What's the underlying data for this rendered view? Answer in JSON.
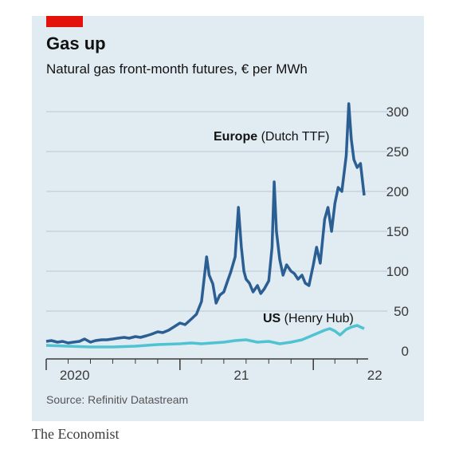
{
  "header": {
    "title": "Gas up",
    "subtitle": "Natural gas front-month futures, € per MWh"
  },
  "footer": {
    "source": "Source: Refinitiv Datastream",
    "brand": "The Economist"
  },
  "colors": {
    "background": "#e1ebf2",
    "accent": "#e3120b",
    "europe": "#2b5f94",
    "us": "#4fc3d1",
    "grid": "#b8c6d2",
    "axis": "#3a3a3a"
  },
  "chart_data": {
    "type": "line",
    "title": "Gas up",
    "subtitle": "Natural gas front-month futures, € per MWh",
    "xlabel": "",
    "ylabel": "",
    "ylim": [
      0,
      300
    ],
    "yticks": [
      0,
      50,
      100,
      150,
      200,
      250,
      300
    ],
    "xlim": [
      "2020-01-01",
      "2022-05-31"
    ],
    "xtick_labels": [
      {
        "date": "2020-04-01",
        "label": "2020"
      },
      {
        "date": "2021-07-01",
        "label": "21"
      },
      {
        "date": "2022-07-01",
        "label": "22"
      }
    ],
    "grid": true,
    "series": [
      {
        "name": "Europe (Dutch TTF)",
        "color": "#2b5f94",
        "points": [
          [
            "2020-01-01",
            12
          ],
          [
            "2020-01-15",
            13
          ],
          [
            "2020-02-01",
            11
          ],
          [
            "2020-02-15",
            12
          ],
          [
            "2020-03-01",
            10
          ],
          [
            "2020-03-15",
            11
          ],
          [
            "2020-04-01",
            12
          ],
          [
            "2020-04-15",
            15
          ],
          [
            "2020-05-01",
            11
          ],
          [
            "2020-05-15",
            13
          ],
          [
            "2020-06-01",
            14
          ],
          [
            "2020-06-15",
            14
          ],
          [
            "2020-07-01",
            15
          ],
          [
            "2020-07-15",
            16
          ],
          [
            "2020-08-01",
            17
          ],
          [
            "2020-08-15",
            16
          ],
          [
            "2020-09-01",
            18
          ],
          [
            "2020-09-15",
            17
          ],
          [
            "2020-10-01",
            19
          ],
          [
            "2020-10-15",
            21
          ],
          [
            "2020-11-01",
            24
          ],
          [
            "2020-11-15",
            23
          ],
          [
            "2020-12-01",
            26
          ],
          [
            "2020-12-15",
            30
          ],
          [
            "2021-01-01",
            35
          ],
          [
            "2021-01-15",
            33
          ],
          [
            "2021-02-01",
            40
          ],
          [
            "2021-02-15",
            46
          ],
          [
            "2021-03-01",
            62
          ],
          [
            "2021-03-15",
            118
          ],
          [
            "2021-03-22",
            95
          ],
          [
            "2021-04-01",
            84
          ],
          [
            "2021-04-10",
            60
          ],
          [
            "2021-04-20",
            70
          ],
          [
            "2021-05-01",
            74
          ],
          [
            "2021-05-10",
            86
          ],
          [
            "2021-05-20",
            99
          ],
          [
            "2021-06-01",
            118
          ],
          [
            "2021-06-10",
            180
          ],
          [
            "2021-06-18",
            130
          ],
          [
            "2021-06-25",
            100
          ],
          [
            "2021-07-01",
            90
          ],
          [
            "2021-07-10",
            85
          ],
          [
            "2021-07-20",
            74
          ],
          [
            "2021-08-01",
            82
          ],
          [
            "2021-08-10",
            72
          ],
          [
            "2021-08-20",
            78
          ],
          [
            "2021-09-01",
            88
          ],
          [
            "2021-09-10",
            130
          ],
          [
            "2021-09-16",
            212
          ],
          [
            "2021-09-22",
            150
          ],
          [
            "2021-10-01",
            115
          ],
          [
            "2021-10-10",
            95
          ],
          [
            "2021-10-20",
            108
          ],
          [
            "2021-11-01",
            100
          ],
          [
            "2021-11-10",
            97
          ],
          [
            "2021-11-20",
            90
          ],
          [
            "2021-12-01",
            95
          ],
          [
            "2021-12-10",
            85
          ],
          [
            "2021-12-20",
            82
          ],
          [
            "2022-01-01",
            108
          ],
          [
            "2022-01-10",
            130
          ],
          [
            "2022-01-20",
            110
          ],
          [
            "2022-02-01",
            165
          ],
          [
            "2022-02-10",
            180
          ],
          [
            "2022-02-20",
            150
          ],
          [
            "2022-03-01",
            185
          ],
          [
            "2022-03-10",
            205
          ],
          [
            "2022-03-20",
            200
          ],
          [
            "2022-04-01",
            245
          ],
          [
            "2022-04-08",
            310
          ],
          [
            "2022-04-15",
            265
          ],
          [
            "2022-04-22",
            240
          ],
          [
            "2022-05-01",
            230
          ],
          [
            "2022-05-10",
            235
          ],
          [
            "2022-05-20",
            195
          ]
        ]
      },
      {
        "name": "US (Henry Hub)",
        "color": "#4fc3d1",
        "points": [
          [
            "2020-01-01",
            7
          ],
          [
            "2020-03-01",
            6
          ],
          [
            "2020-05-01",
            5
          ],
          [
            "2020-07-01",
            5
          ],
          [
            "2020-09-01",
            6
          ],
          [
            "2020-11-01",
            8
          ],
          [
            "2021-01-01",
            9
          ],
          [
            "2021-02-01",
            10
          ],
          [
            "2021-03-01",
            9
          ],
          [
            "2021-05-01",
            11
          ],
          [
            "2021-06-01",
            13
          ],
          [
            "2021-07-01",
            14
          ],
          [
            "2021-08-01",
            11
          ],
          [
            "2021-09-01",
            12
          ],
          [
            "2021-10-01",
            9
          ],
          [
            "2021-11-01",
            11
          ],
          [
            "2021-12-01",
            14
          ],
          [
            "2022-01-01",
            20
          ],
          [
            "2022-02-01",
            26
          ],
          [
            "2022-02-15",
            28
          ],
          [
            "2022-03-01",
            25
          ],
          [
            "2022-03-15",
            20
          ],
          [
            "2022-04-01",
            27
          ],
          [
            "2022-04-15",
            30
          ],
          [
            "2022-05-01",
            32
          ],
          [
            "2022-05-10",
            30
          ],
          [
            "2022-05-20",
            28
          ]
        ]
      }
    ]
  }
}
